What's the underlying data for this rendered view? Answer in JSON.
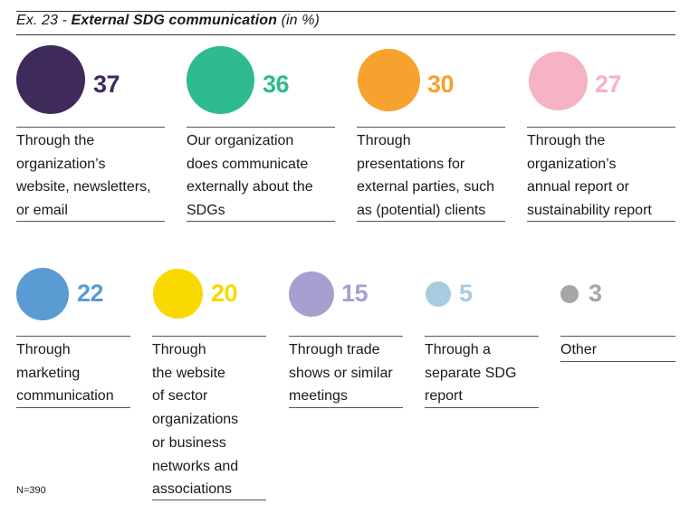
{
  "title": {
    "prefix": "Ex. 23 - ",
    "main": "External SDG communication",
    "suffix": " (in %)"
  },
  "note": "N=390",
  "chart_data": {
    "type": "bubble",
    "title": "Ex. 23 - External SDG communication (in %)",
    "unit": "%",
    "categories": [
      "Through the organization’s website, newsletters, or email",
      "Our organization does communicate externally about the SDGs",
      "Through presentations for external parties, such as (potential) clients",
      "Through the organization’s annual report or sustainability report",
      "Through marketing communication",
      "Through the website of sector organizations or business networks and associations",
      "Through trade shows or similar meetings",
      "Through a separate SDG report",
      "Other"
    ],
    "values": [
      37,
      36,
      30,
      27,
      22,
      20,
      15,
      5,
      3
    ],
    "colors": [
      "#3f2a5c",
      "#2dbb8f",
      "#f7a12f",
      "#f5b3c4",
      "#5a9bd4",
      "#f9d800",
      "#a89fd1",
      "#a8cbe0",
      "#a6a6a6"
    ]
  },
  "items": [
    {
      "value": "37",
      "label": "Through the\norganization’s\nwebsite, newsletters,\nor email"
    },
    {
      "value": "36",
      "label": "Our organization\ndoes communicate\nexternally about the\nSDGs"
    },
    {
      "value": "30",
      "label": "Through\npresentations for\nexternal parties, such\nas (potential) clients"
    },
    {
      "value": "27",
      "label": "Through the\norganization’s\nannual report or\nsustainability report"
    },
    {
      "value": "22",
      "label": "Through\nmarketing\ncommunication"
    },
    {
      "value": "20",
      "label": "Through\nthe website\nof sector\norganizations\nor business\nnetworks and\nassociations"
    },
    {
      "value": "15",
      "label": "Through trade\nshows or similar\nmeetings"
    },
    {
      "value": "5",
      "label": "Through a\nseparate SDG\nreport"
    },
    {
      "value": "3",
      "label": "Other"
    }
  ]
}
